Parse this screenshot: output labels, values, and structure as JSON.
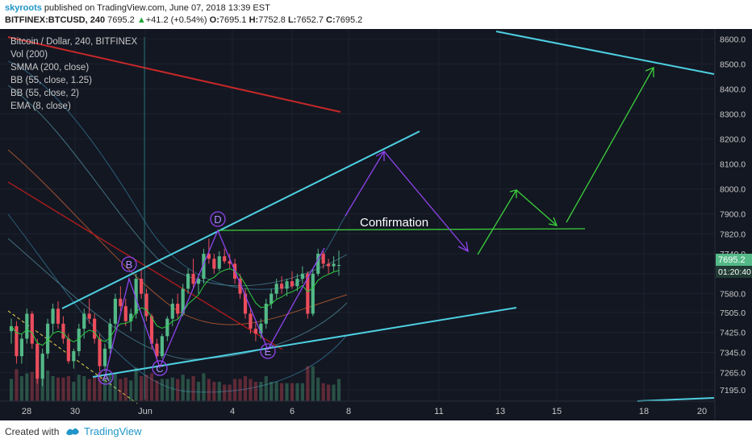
{
  "header": {
    "author": "skyroots",
    "published_text": "published on TradingView.com, June 07, 2018 13:39 EST",
    "symbol": "BITFINEX:BTCUSD, 240",
    "last": "7695.2",
    "change_arrow": "▲",
    "change": "+41.2 (+0.54%)",
    "o_label": "O:",
    "o_value": "7695.1",
    "h_label": "H:",
    "h_value": "7752.8",
    "l_label": "L:",
    "l_value": "7652.7",
    "c_label": "C:",
    "c_value": "7695.2"
  },
  "legend": [
    "Bitcoin / Dollar, 240, BITFINEX",
    "Vol (200)",
    "SMMA (200, close)",
    "BB (55, close, 1.25)",
    "BB (55, close, 2)",
    "EMA (8, close)"
  ],
  "price_axis": {
    "ticks": [
      "8600.0",
      "8500.0",
      "8400.0",
      "8300.0",
      "8200.0",
      "8100.0",
      "8000.0",
      "7900.0",
      "7820.0",
      "7740.0",
      "7660.0",
      "7580.0",
      "7505.0",
      "7425.0",
      "7345.0",
      "7265.0",
      "7195.0"
    ],
    "current_price": "7695.2",
    "countdown": "01:20:40"
  },
  "time_axis": {
    "ticks": [
      "28",
      "30",
      "Jun",
      "4",
      "6",
      "8",
      "11",
      "13",
      "15",
      "18",
      "20"
    ]
  },
  "annotations": {
    "confirmation": "Confirmation",
    "wave_labels": [
      "A",
      "B",
      "C",
      "D",
      "E"
    ]
  },
  "footer": {
    "created_with": "Created with",
    "brand": "TradingView"
  },
  "colors": {
    "background": "#131722",
    "bull_candle": "#53b987",
    "bear_candle": "#eb4d5c",
    "trendline": "#4dd0e1",
    "projection_green": "#3bd13b",
    "projection_purple": "#8e44ec",
    "smma": "#c62828",
    "ema": "#2ecc40"
  },
  "chart_data": {
    "type": "candlestick",
    "title": "Bitcoin / Dollar, 240, BITFINEX",
    "ylim": [
      7150,
      8640
    ],
    "xlabel": "",
    "ylabel": "",
    "x_ticks": [
      "28",
      "30",
      "Jun",
      "4",
      "6",
      "8",
      "11",
      "13",
      "15",
      "18",
      "20"
    ],
    "series": [
      {
        "name": "Bitcoin / Dollar",
        "ohlc": [
          [
            7430,
            7480,
            7380,
            7450
          ],
          [
            7450,
            7470,
            7300,
            7330
          ],
          [
            7330,
            7420,
            7300,
            7400
          ],
          [
            7400,
            7520,
            7380,
            7500
          ],
          [
            7500,
            7510,
            7360,
            7380
          ],
          [
            7380,
            7400,
            7220,
            7240
          ],
          [
            7240,
            7360,
            7210,
            7340
          ],
          [
            7340,
            7480,
            7320,
            7460
          ],
          [
            7460,
            7540,
            7420,
            7520
          ],
          [
            7520,
            7550,
            7440,
            7460
          ],
          [
            7460,
            7490,
            7380,
            7400
          ],
          [
            7400,
            7420,
            7300,
            7310
          ],
          [
            7310,
            7360,
            7280,
            7350
          ],
          [
            7350,
            7460,
            7330,
            7440
          ],
          [
            7440,
            7520,
            7400,
            7500
          ],
          [
            7500,
            7560,
            7460,
            7480
          ],
          [
            7480,
            7500,
            7380,
            7400
          ],
          [
            7400,
            7420,
            7270,
            7290
          ],
          [
            7290,
            7380,
            7270,
            7360
          ],
          [
            7360,
            7480,
            7340,
            7460
          ],
          [
            7460,
            7580,
            7440,
            7560
          ],
          [
            7560,
            7610,
            7510,
            7530
          ],
          [
            7530,
            7560,
            7450,
            7470
          ],
          [
            7470,
            7520,
            7430,
            7500
          ],
          [
            7500,
            7660,
            7480,
            7640
          ],
          [
            7640,
            7680,
            7560,
            7580
          ],
          [
            7580,
            7600,
            7470,
            7490
          ],
          [
            7490,
            7500,
            7360,
            7380
          ],
          [
            7380,
            7400,
            7310,
            7330
          ],
          [
            7330,
            7420,
            7320,
            7410
          ],
          [
            7410,
            7490,
            7390,
            7480
          ],
          [
            7480,
            7560,
            7450,
            7540
          ],
          [
            7540,
            7580,
            7480,
            7500
          ],
          [
            7500,
            7620,
            7490,
            7600
          ],
          [
            7600,
            7680,
            7580,
            7660
          ],
          [
            7660,
            7720,
            7600,
            7620
          ],
          [
            7620,
            7660,
            7580,
            7640
          ],
          [
            7640,
            7760,
            7620,
            7740
          ],
          [
            7740,
            7800,
            7700,
            7720
          ],
          [
            7720,
            7740,
            7660,
            7680
          ],
          [
            7680,
            7750,
            7670,
            7730
          ],
          [
            7730,
            7760,
            7700,
            7710
          ],
          [
            7710,
            7740,
            7680,
            7700
          ],
          [
            7700,
            7720,
            7620,
            7640
          ],
          [
            7640,
            7660,
            7560,
            7580
          ],
          [
            7580,
            7600,
            7480,
            7500
          ],
          [
            7500,
            7520,
            7420,
            7440
          ],
          [
            7440,
            7470,
            7390,
            7420
          ],
          [
            7420,
            7480,
            7400,
            7460
          ],
          [
            7460,
            7560,
            7440,
            7540
          ],
          [
            7540,
            7600,
            7520,
            7580
          ],
          [
            7580,
            7640,
            7560,
            7620
          ],
          [
            7620,
            7650,
            7580,
            7600
          ],
          [
            7600,
            7640,
            7570,
            7630
          ],
          [
            7630,
            7670,
            7600,
            7610
          ],
          [
            7610,
            7660,
            7590,
            7640
          ],
          [
            7640,
            7690,
            7620,
            7660
          ],
          [
            7660,
            7670,
            7480,
            7500
          ],
          [
            7500,
            7680,
            7490,
            7660
          ],
          [
            7660,
            7760,
            7650,
            7740
          ],
          [
            7740,
            7750,
            7680,
            7700
          ],
          [
            7700,
            7720,
            7660,
            7690
          ],
          [
            7690,
            7730,
            7670,
            7700
          ],
          [
            7695,
            7752,
            7652,
            7695
          ]
        ]
      }
    ]
  }
}
